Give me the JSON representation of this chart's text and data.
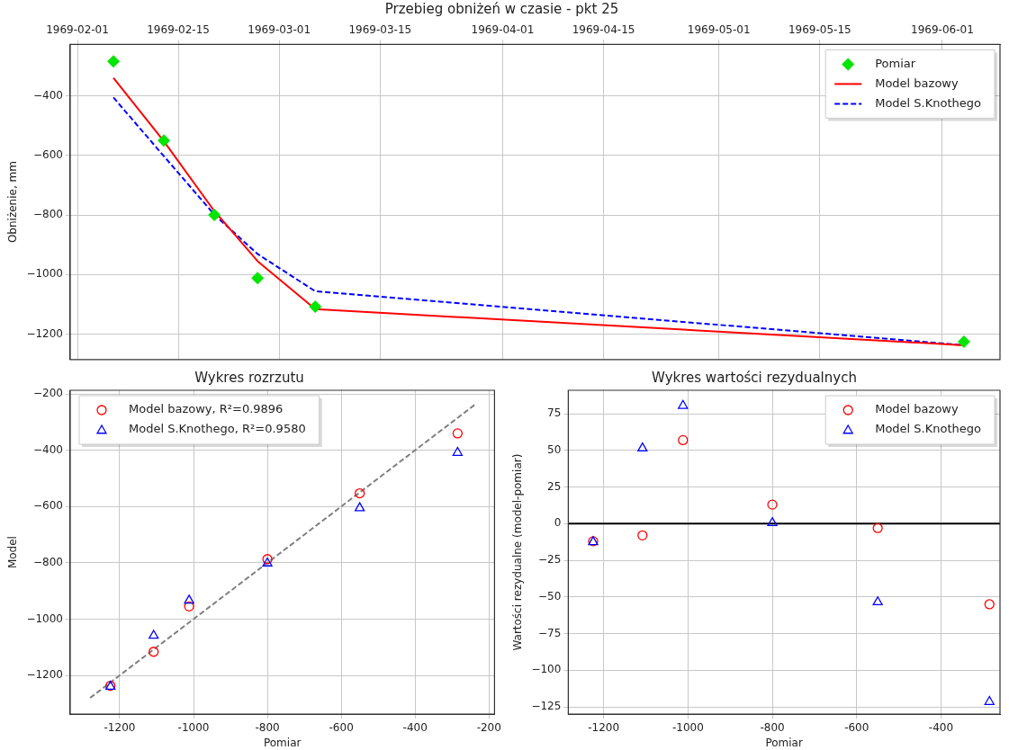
{
  "chart_data": [
    {
      "type": "line",
      "title": "Przebieg obniżeń w czasie - pkt 25",
      "ylabel": "Obniżenie, mm",
      "x": [
        "1969-02-06",
        "1969-02-13",
        "1969-02-20",
        "1969-02-26",
        "1969-03-06",
        "1969-06-04"
      ],
      "xlim": [
        "1969-01-31",
        "1969-06-09"
      ],
      "xticks": [
        "1969-02-01",
        "1969-02-15",
        "1969-03-01",
        "1969-03-15",
        "1969-04-01",
        "1969-04-15",
        "1969-05-01",
        "1969-05-15",
        "1969-06-01"
      ],
      "ylim": [
        -1285,
        -228
      ],
      "yticks": [
        -1200,
        -1000,
        -800,
        -600,
        -400
      ],
      "grid": true,
      "legend": "top right",
      "series": [
        {
          "name": "Pomiar",
          "type": "scatter",
          "marker": "diamond",
          "color": "#00e600",
          "values": [
            -285,
            -550,
            -800,
            -1012,
            -1108,
            -1225
          ]
        },
        {
          "name": "Model bazowy",
          "type": "line",
          "marker": "none",
          "line_style": "solid",
          "color": "#ff0000",
          "values": [
            -340,
            -553,
            -787,
            -955,
            -1116,
            -1237
          ]
        },
        {
          "name": "Model S.Knothego",
          "type": "line",
          "marker": "none",
          "line_style": "dashed",
          "color": "#0000ff",
          "values": [
            -406,
            -603,
            -799,
            -931,
            -1056,
            -1237
          ]
        }
      ]
    },
    {
      "type": "scatter",
      "title": "Wykres rozrzutu",
      "xlabel": "Pomiar",
      "ylabel": "Model",
      "x": [
        -285,
        -550,
        -800,
        -1012,
        -1108,
        -1225
      ],
      "xlim": [
        -1334,
        -185
      ],
      "xticks": [
        -1200,
        -1000,
        -800,
        -600,
        -400,
        -200
      ],
      "ylim": [
        -1338,
        -187
      ],
      "yticks": [
        -1200,
        -1000,
        -800,
        -600,
        -400,
        -200
      ],
      "grid": true,
      "legend": "top left",
      "series": [
        {
          "name": "Model bazowy, R²=0.9896",
          "marker": "circle",
          "color": "#ff0000",
          "values": [
            -340,
            -553,
            -787,
            -955,
            -1116,
            -1237
          ]
        },
        {
          "name": "Model S.Knothego, R²=0.9580",
          "marker": "triangle",
          "color": "#0000ff",
          "values": [
            -406,
            -603,
            -799,
            -931,
            -1056,
            -1237
          ]
        },
        {
          "type": "line",
          "marker": "none",
          "line_style": "dashed",
          "color": "#808080",
          "x": [
            -1280,
            -235
          ],
          "values": [
            -1280,
            -235
          ]
        }
      ]
    },
    {
      "type": "scatter",
      "title": "Wykres wartości rezydualnych",
      "xlabel": "Pomiar",
      "ylabel": "Wartości rezydualne (model-pomiar)",
      "x": [
        -285,
        -550,
        -800,
        -1012,
        -1108,
        -1225
      ],
      "xlim": [
        -1284,
        -260
      ],
      "xticks": [
        -1200,
        -1000,
        -800,
        -600,
        -400
      ],
      "ylim": [
        -130,
        91
      ],
      "yticks": [
        -125,
        -100,
        -75,
        -50,
        -25,
        0,
        25,
        50,
        75
      ],
      "grid": true,
      "legend": "top right",
      "ref_lines": [
        {
          "axis": "y",
          "value": 0,
          "color": "#000000"
        }
      ],
      "series": [
        {
          "name": "Model bazowy",
          "marker": "circle",
          "color": "#ff0000",
          "values": [
            -55,
            -3,
            13,
            57,
            -8,
            -12
          ]
        },
        {
          "name": "Model S.Knothego",
          "marker": "triangle",
          "color": "#0000ff",
          "values": [
            -121,
            -53,
            1,
            81,
            52,
            -12
          ]
        }
      ]
    }
  ]
}
